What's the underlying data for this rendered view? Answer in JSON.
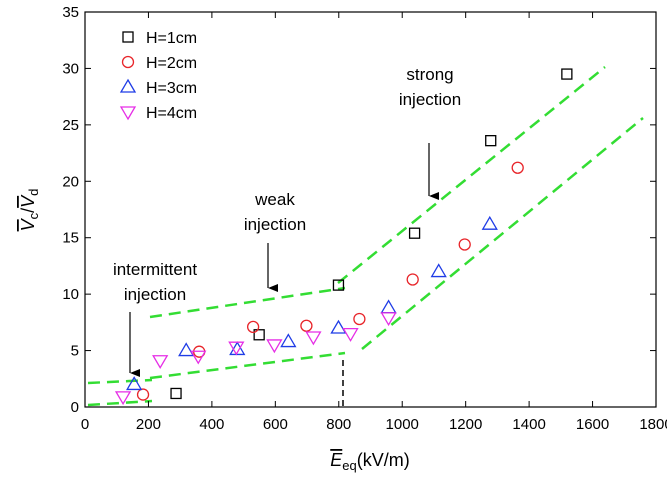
{
  "chart_data": {
    "type": "scatter",
    "xlabel": {
      "main": "E",
      "sub": "eq",
      "unit": "(kV/m)"
    },
    "ylabel": {
      "main1": "V",
      "sub1": "c",
      "sep": "/",
      "main2": "V",
      "sub2": "d"
    },
    "xlim": [
      0,
      1800
    ],
    "xticks": [
      0,
      200,
      400,
      600,
      800,
      1000,
      1200,
      1400,
      1600,
      1800
    ],
    "ylim": [
      0,
      35
    ],
    "yticks": [
      0,
      5,
      10,
      15,
      20,
      25,
      30,
      35
    ],
    "legend": "upper left",
    "series": [
      {
        "name": "H=1cm",
        "color": "#000000",
        "marker": "square",
        "x": [
          287,
          549,
          799,
          1039,
          1279,
          1519
        ],
        "values": [
          1.2,
          6.4,
          10.8,
          15.4,
          23.6,
          29.5
        ]
      },
      {
        "name": "H=2cm",
        "color": "#e8252a",
        "marker": "circle",
        "x": [
          183,
          360,
          530,
          698,
          865,
          1033,
          1197,
          1364
        ],
        "values": [
          1.1,
          4.9,
          7.1,
          7.2,
          7.8,
          11.3,
          14.4,
          21.2
        ]
      },
      {
        "name": "H=3cm",
        "color": "#1f3ce6",
        "marker": "triangle-up",
        "x": [
          155,
          319,
          480,
          641,
          799,
          957,
          1115,
          1276
        ],
        "values": [
          2.0,
          5.0,
          5.1,
          5.8,
          7.0,
          8.8,
          12.0,
          16.2
        ]
      },
      {
        "name": "H=4cm",
        "color": "#e62ee6",
        "marker": "triangle-down",
        "x": [
          120,
          237,
          357,
          477,
          597,
          720,
          837,
          957
        ],
        "values": [
          0.9,
          4.1,
          4.5,
          5.3,
          5.5,
          6.2,
          6.5,
          7.9
        ]
      }
    ],
    "annotations": [
      {
        "lines": [
          "strong",
          "injection"
        ]
      },
      {
        "lines": [
          "weak",
          "injection"
        ]
      },
      {
        "lines": [
          "intermittent",
          "injection"
        ]
      }
    ]
  }
}
